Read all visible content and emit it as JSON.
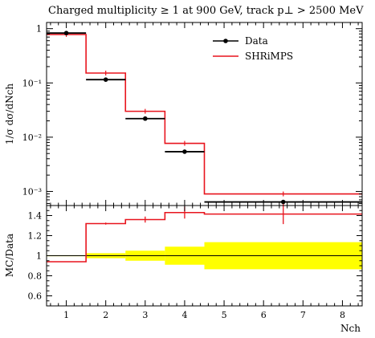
{
  "chart_data": [
    {
      "type": "line",
      "title": "Charged multiplicity ≥ 1 at 900 GeV, track p⊥ > 2500 MeV",
      "ylabel": "1/σ dσ/dNch",
      "ylog": true,
      "ylim": [
        0.00055,
        1.3
      ],
      "xlim": [
        0.5,
        8.5
      ],
      "y_ticks": [
        "1",
        "10⁻¹",
        "10⁻²",
        "10⁻³"
      ],
      "legend_position": "top-right",
      "legend": [
        {
          "name": "Data",
          "color": "#000000",
          "style": "points"
        },
        {
          "name": "SHRiMPS",
          "color": "#e8141d",
          "style": "histogram"
        }
      ],
      "series": [
        {
          "name": "Data",
          "color": "#000000",
          "bins": [
            {
              "xlo": 0.5,
              "xhi": 1.5,
              "x": 1.0,
              "y": 0.83
            },
            {
              "xlo": 1.5,
              "xhi": 2.5,
              "x": 2.0,
              "y": 0.115
            },
            {
              "xlo": 2.5,
              "xhi": 3.5,
              "x": 3.0,
              "y": 0.022
            },
            {
              "xlo": 3.5,
              "xhi": 4.5,
              "x": 4.0,
              "y": 0.0054
            },
            {
              "xlo": 4.5,
              "xhi": 8.5,
              "x": 6.5,
              "y": 0.00064
            }
          ]
        },
        {
          "name": "SHRiMPS",
          "color": "#e8141d",
          "bins": [
            {
              "xlo": 0.5,
              "xhi": 1.5,
              "x": 1.0,
              "y": 0.78
            },
            {
              "xlo": 1.5,
              "xhi": 2.5,
              "x": 2.0,
              "y": 0.152
            },
            {
              "xlo": 2.5,
              "xhi": 3.5,
              "x": 3.0,
              "y": 0.03
            },
            {
              "xlo": 3.5,
              "xhi": 4.5,
              "x": 4.0,
              "y": 0.0077
            },
            {
              "xlo": 4.5,
              "xhi": 8.5,
              "x": 6.5,
              "y": 0.0009
            }
          ]
        }
      ]
    },
    {
      "type": "line",
      "ylabel": "MC/Data",
      "xlabel": "Nch",
      "xlim": [
        0.5,
        8.5
      ],
      "ylim": [
        0.5,
        1.5
      ],
      "x_ticks": [
        1,
        2,
        3,
        4,
        5,
        6,
        7,
        8
      ],
      "y_ticks": [
        0.6,
        0.8,
        1.0,
        1.2,
        1.4
      ],
      "y_tick_labels": [
        "0.6",
        "0.8",
        "1",
        "1.2",
        "1.4"
      ],
      "reference_line": 1.0,
      "band_color": "#ffff00",
      "uncertainty_band": [
        {
          "xlo": 0.5,
          "xhi": 1.5,
          "lo": 0.995,
          "hi": 1.005
        },
        {
          "xlo": 1.5,
          "xhi": 2.5,
          "lo": 0.975,
          "hi": 1.025
        },
        {
          "xlo": 2.5,
          "xhi": 3.5,
          "lo": 0.95,
          "hi": 1.05
        },
        {
          "xlo": 3.5,
          "xhi": 4.5,
          "lo": 0.91,
          "hi": 1.09
        },
        {
          "xlo": 4.5,
          "xhi": 8.5,
          "lo": 0.865,
          "hi": 1.135
        }
      ],
      "series": [
        {
          "name": "SHRiMPS",
          "color": "#e8141d",
          "bins": [
            {
              "xlo": 0.5,
              "xhi": 1.5,
              "x": 1.0,
              "y": 0.94,
              "err": 0.0
            },
            {
              "xlo": 1.5,
              "xhi": 2.5,
              "x": 2.0,
              "y": 1.32,
              "err": 0.01
            },
            {
              "xlo": 2.5,
              "xhi": 3.5,
              "x": 3.0,
              "y": 1.36,
              "err": 0.03
            },
            {
              "xlo": 3.5,
              "xhi": 4.5,
              "x": 4.0,
              "y": 1.43,
              "err": 0.06
            },
            {
              "xlo": 4.5,
              "xhi": 8.5,
              "x": 6.5,
              "y": 1.415,
              "err": 0.1
            }
          ]
        }
      ]
    }
  ]
}
